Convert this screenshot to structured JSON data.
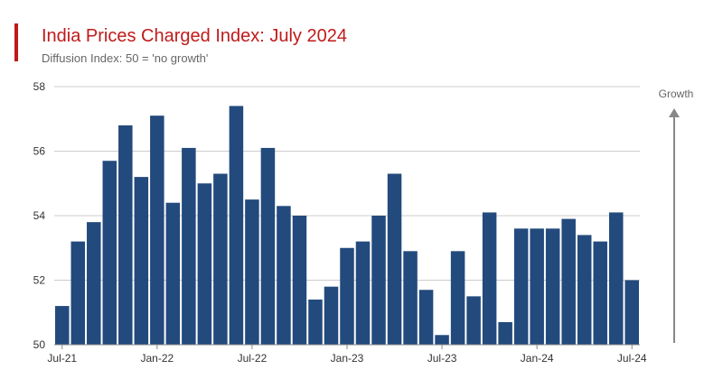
{
  "chart_data": {
    "type": "bar",
    "title": "India Prices Charged Index: July 2024",
    "subtitle": "Diffusion Index: 50 = 'no growth'",
    "xlabel": "",
    "ylabel": "",
    "ylim": [
      50,
      58
    ],
    "yticks": [
      50,
      52,
      54,
      56,
      58
    ],
    "grid": true,
    "legend": "none",
    "categories": [
      "Jul-21",
      "Aug-21",
      "Sep-21",
      "Oct-21",
      "Nov-21",
      "Dec-21",
      "Jan-22",
      "Feb-22",
      "Mar-22",
      "Apr-22",
      "May-22",
      "Jun-22",
      "Jul-22",
      "Aug-22",
      "Sep-22",
      "Oct-22",
      "Nov-22",
      "Dec-22",
      "Jan-23",
      "Feb-23",
      "Mar-23",
      "Apr-23",
      "May-23",
      "Jun-23",
      "Jul-23",
      "Aug-23",
      "Sep-23",
      "Oct-23",
      "Nov-23",
      "Dec-23",
      "Jan-24",
      "Feb-24",
      "Mar-24",
      "Apr-24",
      "May-24",
      "Jun-24",
      "Jul-24"
    ],
    "xtick_labels": [
      {
        "index": 0,
        "label": "Jul-21"
      },
      {
        "index": 6,
        "label": "Jan-22"
      },
      {
        "index": 12,
        "label": "Jul-22"
      },
      {
        "index": 18,
        "label": "Jan-23"
      },
      {
        "index": 24,
        "label": "Jul-23"
      },
      {
        "index": 30,
        "label": "Jan-24"
      },
      {
        "index": 36,
        "label": "Jul-24"
      }
    ],
    "values": [
      51.2,
      53.2,
      53.8,
      55.7,
      56.8,
      55.2,
      57.1,
      54.4,
      56.1,
      55.0,
      55.3,
      57.4,
      54.5,
      56.1,
      54.3,
      54.0,
      51.4,
      51.8,
      53.0,
      53.2,
      54.0,
      55.3,
      52.9,
      51.7,
      50.3,
      52.9,
      51.5,
      54.1,
      50.7,
      53.6,
      53.6,
      53.6,
      53.9,
      53.4,
      53.2,
      54.1,
      52.0
    ],
    "annotation": "Growth",
    "colors": {
      "bar": "#234a7d",
      "title": "#c01a1a",
      "accent": "#c01a1a",
      "grid": "#cccccc",
      "axis": "#888888",
      "arrow": "#888888"
    }
  }
}
